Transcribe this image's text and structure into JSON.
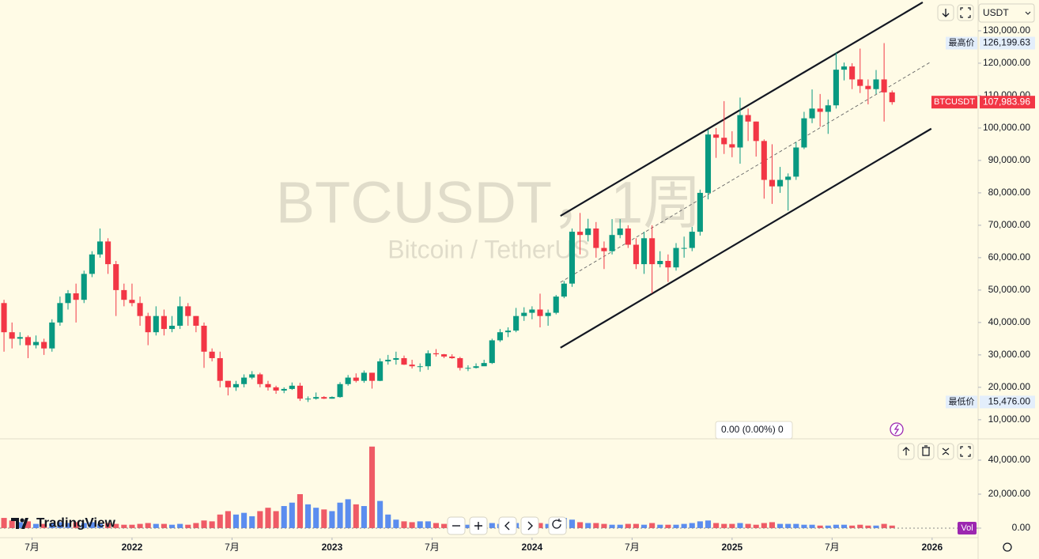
{
  "chart_data": {
    "type": "candlestick",
    "watermark": "BTCUSDT，1周",
    "watermark_subtitle": "Bitcoin / TetherUS",
    "currency": "USDT",
    "status": "0.00 (0.00%) 0",
    "volume_label": "Vol",
    "brand": "TradingView",
    "up_color": "#089981",
    "down_color": "#f23645",
    "volume_up_color": "#5b8def",
    "volume_down_color": "#ef5b66",
    "x": [
      2021.36,
      2021.4,
      2021.44,
      2021.48,
      2021.52,
      2021.56,
      2021.6,
      2021.64,
      2021.68,
      2021.72,
      2021.76,
      2021.8,
      2021.84,
      2021.88,
      2021.92,
      2021.96,
      2022,
      2022.04,
      2022.08,
      2022.12,
      2022.16,
      2022.2,
      2022.24,
      2022.28,
      2022.32,
      2022.36,
      2022.4,
      2022.44,
      2022.48,
      2022.52,
      2022.56,
      2022.6,
      2022.64,
      2022.68,
      2022.72,
      2022.76,
      2022.8,
      2022.84,
      2022.88,
      2022.92,
      2022.96,
      2023,
      2023.04,
      2023.08,
      2023.12,
      2023.16,
      2023.2,
      2023.24,
      2023.28,
      2023.32,
      2023.36,
      2023.4,
      2023.44,
      2023.48,
      2023.52,
      2023.56,
      2023.6,
      2023.64,
      2023.68,
      2023.72,
      2023.76,
      2023.8,
      2023.84,
      2023.88,
      2023.92,
      2023.96,
      2024,
      2024.04,
      2024.08,
      2024.12,
      2024.16,
      2024.2,
      2024.24,
      2024.28,
      2024.32,
      2024.36,
      2024.4,
      2024.44,
      2024.48,
      2024.52,
      2024.56,
      2024.6,
      2024.64,
      2024.68,
      2024.72,
      2024.76,
      2024.8,
      2024.84,
      2024.88,
      2024.92,
      2024.96,
      2025,
      2025.04,
      2025.08,
      2025.12,
      2025.16,
      2025.2,
      2025.24,
      2025.28,
      2025.32,
      2025.36,
      2025.4,
      2025.44,
      2025.48,
      2025.52,
      2025.56,
      2025.6,
      2025.64,
      2025.68,
      2025.72,
      2025.76,
      2025.8
    ],
    "open": [
      46000,
      37000,
      35000,
      35500,
      33000,
      34000,
      32000,
      40000,
      46000,
      49000,
      47000,
      55000,
      61000,
      65000,
      58000,
      50000,
      47000,
      46000,
      42000,
      37000,
      42000,
      38000,
      39000,
      45000,
      42000,
      39000,
      31000,
      29000,
      22000,
      20000,
      21000,
      23000,
      24000,
      21000,
      20000,
      19000,
      19500,
      20500,
      16500,
      16500,
      17000,
      16500,
      17000,
      21000,
      23000,
      22000,
      24500,
      22000,
      28000,
      28500,
      29000,
      27000,
      26500,
      26500,
      30500,
      30200,
      29500,
      29000,
      26000,
      26000,
      26500,
      27500,
      34500,
      37000,
      37500,
      42000,
      43000,
      44000,
      42000,
      43000,
      48000,
      52000,
      68000,
      67000,
      69000,
      63000,
      62000,
      67000,
      69000,
      64000,
      58000,
      66000,
      58000,
      59000,
      57000,
      63000,
      63000,
      68000,
      80000,
      98000,
      97000,
      95000,
      94000,
      104000,
      102000,
      96000,
      84000,
      82000,
      84000,
      85000,
      94000,
      103000,
      106000,
      105000,
      107000,
      118000,
      119000,
      115000,
      113000,
      112000,
      115000,
      111000
    ],
    "high": [
      47000,
      40000,
      37000,
      36000,
      36000,
      35000,
      41000,
      48000,
      50000,
      52000,
      56000,
      62000,
      69000,
      66000,
      59000,
      52000,
      52000,
      48000,
      43000,
      45000,
      44000,
      42000,
      48000,
      46000,
      42000,
      40000,
      32000,
      31000,
      22000,
      22000,
      24000,
      25000,
      24500,
      22000,
      20500,
      20000,
      21500,
      21400,
      17200,
      18400,
      17300,
      17200,
      21600,
      23800,
      24300,
      25200,
      24500,
      28900,
      30000,
      31000,
      29800,
      28500,
      27400,
      31400,
      31800,
      30300,
      30200,
      29400,
      26800,
      27400,
      28500,
      35000,
      38000,
      38500,
      44500,
      44700,
      45000,
      48900,
      44000,
      48500,
      52800,
      69000,
      73800,
      72000,
      71000,
      65000,
      71900,
      71900,
      70000,
      66000,
      68000,
      70000,
      62000,
      61000,
      64500,
      66500,
      69500,
      81000,
      99500,
      100000,
      108300,
      99000,
      109400,
      106000,
      102000,
      96500,
      95000,
      88000,
      86000,
      95700,
      105000,
      111900,
      110500,
      108800,
      123200,
      120200,
      120000,
      124500,
      115000,
      117900,
      126199.63,
      111600
    ],
    "low": [
      31000,
      32000,
      33000,
      29000,
      32000,
      30000,
      31000,
      39000,
      44000,
      40000,
      46000,
      54000,
      60000,
      55000,
      42000,
      45000,
      45000,
      39000,
      33000,
      36000,
      36000,
      37000,
      38000,
      39000,
      37000,
      26000,
      28000,
      20000,
      17500,
      18900,
      20000,
      22500,
      20000,
      19000,
      18000,
      18200,
      19200,
      15800,
      15476,
      16200,
      16400,
      16500,
      16800,
      20500,
      21500,
      21400,
      19600,
      21900,
      27000,
      27000,
      26900,
      25800,
      24800,
      25400,
      29500,
      29000,
      28800,
      25200,
      25000,
      25800,
      26600,
      27200,
      34000,
      35500,
      37000,
      40500,
      41000,
      38500,
      39000,
      42500,
      47500,
      51000,
      61000,
      65000,
      60000,
      56500,
      61000,
      66000,
      63000,
      56500,
      55000,
      49000,
      57000,
      52500,
      56000,
      60000,
      62000,
      66800,
      78000,
      90800,
      92000,
      91000,
      89000,
      96000,
      91200,
      78200,
      76600,
      80000,
      74500,
      84000,
      93500,
      101500,
      100400,
      98200,
      106000,
      114700,
      112000,
      110800,
      107300,
      110500,
      102000,
      107200
    ],
    "close": [
      37000,
      35000,
      35500,
      33000,
      34000,
      32000,
      40000,
      46000,
      49000,
      47000,
      55000,
      61000,
      65000,
      58000,
      50000,
      47000,
      46000,
      42000,
      37000,
      42000,
      38000,
      39000,
      45000,
      42000,
      39000,
      31000,
      29000,
      22000,
      20000,
      21000,
      23000,
      24000,
      21000,
      20000,
      19000,
      19500,
      20500,
      16500,
      16500,
      17000,
      16500,
      17000,
      21000,
      23000,
      22000,
      24500,
      22000,
      28000,
      28500,
      29000,
      27000,
      26500,
      26500,
      30500,
      30200,
      29500,
      29000,
      26000,
      26000,
      26500,
      27500,
      34500,
      37000,
      37500,
      42000,
      43000,
      44000,
      42000,
      43000,
      48000,
      52000,
      68000,
      67000,
      69000,
      63000,
      62000,
      67000,
      69000,
      64000,
      58000,
      66000,
      58000,
      59000,
      57000,
      63000,
      63000,
      68000,
      80000,
      98000,
      97000,
      95000,
      94000,
      104000,
      102000,
      96000,
      84000,
      82000,
      84000,
      85000,
      94000,
      103000,
      106000,
      105000,
      107000,
      118000,
      119000,
      115000,
      113000,
      112000,
      115000,
      111000,
      107983.96
    ],
    "volume": [
      6000,
      4500,
      3500,
      4000,
      2500,
      2500,
      3000,
      3500,
      3000,
      3500,
      3000,
      3500,
      2500,
      3000,
      2500,
      2000,
      2000,
      2500,
      3000,
      2500,
      2500,
      2000,
      2500,
      2000,
      3000,
      4500,
      4000,
      8000,
      10000,
      8000,
      9000,
      7000,
      10000,
      12000,
      10000,
      13000,
      15000,
      20000,
      14000,
      12000,
      11000,
      10000,
      15000,
      17000,
      14000,
      13000,
      48000,
      16000,
      8000,
      5000,
      4000,
      3500,
      4000,
      4000,
      3000,
      2500,
      2500,
      3500,
      2000,
      2000,
      2000,
      3000,
      2500,
      2500,
      3000,
      2500,
      2500,
      3000,
      2500,
      3000,
      6000,
      5000,
      3500,
      3000,
      3000,
      2500,
      2000,
      2000,
      2500,
      2500,
      2000,
      3000,
      2000,
      2000,
      2000,
      2500,
      3000,
      4000,
      4500,
      3000,
      2500,
      2500,
      3000,
      2500,
      2000,
      3000,
      3500,
      2500,
      2500,
      2500,
      2000,
      2000,
      1500,
      1500,
      2000,
      2000,
      1500,
      2000,
      1500,
      1500,
      2500,
      1500
    ],
    "xlim": [
      2021.34,
      2026.23
    ],
    "xticks": [
      {
        "value": 2021.5,
        "label": "7月"
      },
      2022,
      {
        "value": 2022.5,
        "label": "7月"
      },
      2023,
      {
        "value": 2023.5,
        "label": "7月"
      },
      2024,
      {
        "value": 2024.5,
        "label": "7月"
      },
      2025,
      {
        "value": 2025.5,
        "label": "7月"
      },
      2026
    ],
    "ylim": [
      4600,
      139500
    ],
    "yticks": [
      {
        "value": 10000,
        "label": "10,000.00"
      },
      {
        "value": 20000,
        "label": "20,000.00"
      },
      {
        "value": 30000,
        "label": "30,000.00"
      },
      {
        "value": 40000,
        "label": "40,000.00"
      },
      {
        "value": 50000,
        "label": "50,000.00"
      },
      {
        "value": 60000,
        "label": "60,000.00"
      },
      {
        "value": 70000,
        "label": "70,000.00"
      },
      {
        "value": 80000,
        "label": "80,000.00"
      },
      {
        "value": 90000,
        "label": "90,000.00"
      },
      {
        "value": 100000,
        "label": "100,000.00"
      },
      {
        "value": 110000,
        "label": "110,000.00"
      },
      {
        "value": 120000,
        "label": "120,000.00"
      },
      {
        "value": 130000,
        "label": "130,000.00"
      }
    ],
    "volume_ylim": [
      -5600,
      52100
    ],
    "volume_yticks": [
      {
        "value": 0,
        "label": "0.00"
      },
      {
        "value": 20000,
        "label": "20,000.00"
      },
      {
        "value": 40000,
        "label": "40,000.00"
      }
    ],
    "channel": {
      "upper": {
        "x": [
          2024.142,
          2025.953
        ],
        "y": [
          72900,
          138780
        ]
      },
      "middle": {
        "x": [
          2024.142,
          2025.996
        ],
        "y": [
          52400,
          120500
        ]
      },
      "lower": {
        "x": [
          2024.142,
          2025.996
        ],
        "y": [
          32200,
          99800
        ]
      }
    },
    "price_markers": [
      {
        "label": "最高价",
        "value": 126199.63,
        "value_label": "126,199.63"
      },
      {
        "label": "最低价",
        "value": 15476,
        "value_label": "15,476.00"
      }
    ],
    "last_price": {
      "label": "BTCUSDT",
      "value": 107983.96,
      "value_label": "107,983.96"
    }
  }
}
